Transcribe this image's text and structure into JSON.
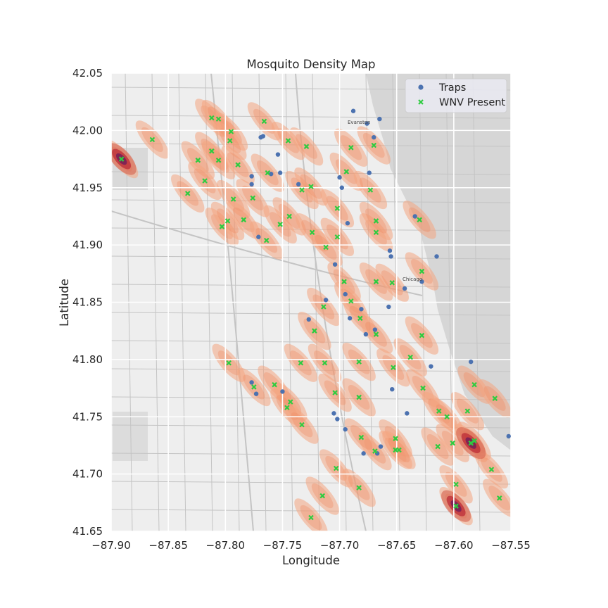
{
  "chart_data": {
    "type": "scatter",
    "title": "Mosquito Density Map",
    "xlabel": "Longitude",
    "ylabel": "Latitude",
    "xlim": [
      -87.9,
      -87.55
    ],
    "ylim": [
      41.65,
      42.05
    ],
    "x_ticks": [
      -87.9,
      -87.85,
      -87.8,
      -87.75,
      -87.7,
      -87.65,
      -87.6,
      -87.55
    ],
    "x_tick_labels": [
      "−87.90",
      "−87.85",
      "−87.80",
      "−87.75",
      "−87.70",
      "−87.65",
      "−87.60",
      "−87.55"
    ],
    "y_ticks": [
      41.65,
      41.7,
      41.75,
      41.8,
      41.85,
      41.9,
      41.95,
      42.0,
      42.05
    ],
    "y_tick_labels": [
      "41.65",
      "41.70",
      "41.75",
      "41.80",
      "41.85",
      "41.90",
      "41.95",
      "42.00",
      "42.05"
    ],
    "grid": true,
    "legend": {
      "position": "top-right",
      "entries": [
        {
          "label": "Traps",
          "marker": "circle",
          "color": "#4c72b0"
        },
        {
          "label": "WNV Present",
          "marker": "x",
          "color": "#2ca02c"
        }
      ]
    },
    "colors": {
      "traps": "#4c72b0",
      "wnv": "#2ecc40",
      "density_low": "#f4a582",
      "density_high": "#6a1b5a",
      "background": "#eaeaf2"
    },
    "map_labels": [
      "Evanston",
      "Chicago"
    ],
    "series": [
      {
        "name": "Traps",
        "points": [
          [
            -87.688,
            42.017
          ],
          [
            -87.676,
            42.006
          ],
          [
            -87.665,
            42.01
          ],
          [
            -87.67,
            41.994
          ],
          [
            -87.769,
            41.994
          ],
          [
            -87.767,
            41.995
          ],
          [
            -87.754,
            41.979
          ],
          [
            -87.76,
            41.962
          ],
          [
            -87.752,
            41.963
          ],
          [
            -87.777,
            41.96
          ],
          [
            -87.777,
            41.953
          ],
          [
            -87.736,
            41.953
          ],
          [
            -87.7,
            41.959
          ],
          [
            -87.698,
            41.95
          ],
          [
            -87.674,
            41.963
          ],
          [
            -87.634,
            41.925
          ],
          [
            -87.693,
            41.919
          ],
          [
            -87.771,
            41.907
          ],
          [
            -87.656,
            41.895
          ],
          [
            -87.655,
            41.89
          ],
          [
            -87.615,
            41.89
          ],
          [
            -87.704,
            41.883
          ],
          [
            -87.628,
            41.868
          ],
          [
            -87.643,
            41.862
          ],
          [
            -87.695,
            41.857
          ],
          [
            -87.712,
            41.852
          ],
          [
            -87.691,
            41.836
          ],
          [
            -87.681,
            41.844
          ],
          [
            -87.727,
            41.835
          ],
          [
            -87.657,
            41.846
          ],
          [
            -87.669,
            41.826
          ],
          [
            -87.677,
            41.822
          ],
          [
            -87.62,
            41.794
          ],
          [
            -87.585,
            41.798
          ],
          [
            -87.777,
            41.78
          ],
          [
            -87.75,
            41.772
          ],
          [
            -87.654,
            41.774
          ],
          [
            -87.705,
            41.753
          ],
          [
            -87.702,
            41.748
          ],
          [
            -87.695,
            41.739
          ],
          [
            -87.664,
            41.724
          ],
          [
            -87.679,
            41.718
          ],
          [
            -87.667,
            41.718
          ],
          [
            -87.552,
            41.733
          ],
          [
            -87.641,
            41.753
          ],
          [
            -87.773,
            41.77
          ]
        ]
      },
      {
        "name": "WNV Present",
        "points": [
          [
            -87.891,
            41.975
          ],
          [
            -87.864,
            41.992
          ],
          [
            -87.824,
            41.974
          ],
          [
            -87.812,
            42.011
          ],
          [
            -87.806,
            42.01
          ],
          [
            -87.795,
            41.999
          ],
          [
            -87.796,
            41.991
          ],
          [
            -87.766,
            42.008
          ],
          [
            -87.745,
            41.991
          ],
          [
            -87.729,
            41.986
          ],
          [
            -87.69,
            41.985
          ],
          [
            -87.67,
            41.987
          ],
          [
            -87.694,
            41.964
          ],
          [
            -87.673,
            41.948
          ],
          [
            -87.812,
            41.982
          ],
          [
            -87.806,
            41.974
          ],
          [
            -87.789,
            41.97
          ],
          [
            -87.763,
            41.963
          ],
          [
            -87.776,
            41.941
          ],
          [
            -87.733,
            41.948
          ],
          [
            -87.725,
            41.951
          ],
          [
            -87.833,
            41.945
          ],
          [
            -87.818,
            41.956
          ],
          [
            -87.793,
            41.94
          ],
          [
            -87.803,
            41.916
          ],
          [
            -87.798,
            41.921
          ],
          [
            -87.784,
            41.922
          ],
          [
            -87.752,
            41.918
          ],
          [
            -87.744,
            41.925
          ],
          [
            -87.724,
            41.911
          ],
          [
            -87.712,
            41.898
          ],
          [
            -87.702,
            41.907
          ],
          [
            -87.702,
            41.932
          ],
          [
            -87.668,
            41.911
          ],
          [
            -87.668,
            41.921
          ],
          [
            -87.764,
            41.904
          ],
          [
            -87.63,
            41.922
          ],
          [
            -87.628,
            41.877
          ],
          [
            -87.668,
            41.868
          ],
          [
            -87.654,
            41.867
          ],
          [
            -87.696,
            41.868
          ],
          [
            -87.69,
            41.851
          ],
          [
            -87.714,
            41.846
          ],
          [
            -87.682,
            41.836
          ],
          [
            -87.668,
            41.822
          ],
          [
            -87.722,
            41.825
          ],
          [
            -87.628,
            41.821
          ],
          [
            -87.797,
            41.797
          ],
          [
            -87.734,
            41.797
          ],
          [
            -87.713,
            41.797
          ],
          [
            -87.683,
            41.798
          ],
          [
            -87.653,
            41.793
          ],
          [
            -87.638,
            41.802
          ],
          [
            -87.775,
            41.776
          ],
          [
            -87.757,
            41.778
          ],
          [
            -87.743,
            41.763
          ],
          [
            -87.746,
            41.758
          ],
          [
            -87.704,
            41.771
          ],
          [
            -87.683,
            41.767
          ],
          [
            -87.627,
            41.775
          ],
          [
            -87.613,
            41.755
          ],
          [
            -87.606,
            41.75
          ],
          [
            -87.588,
            41.755
          ],
          [
            -87.582,
            41.778
          ],
          [
            -87.564,
            41.766
          ],
          [
            -87.585,
            41.727
          ],
          [
            -87.582,
            41.729
          ],
          [
            -87.601,
            41.727
          ],
          [
            -87.614,
            41.724
          ],
          [
            -87.651,
            41.731
          ],
          [
            -87.651,
            41.721
          ],
          [
            -87.648,
            41.721
          ],
          [
            -87.669,
            41.72
          ],
          [
            -87.681,
            41.732
          ],
          [
            -87.733,
            41.743
          ],
          [
            -87.703,
            41.705
          ],
          [
            -87.715,
            41.681
          ],
          [
            -87.683,
            41.688
          ],
          [
            -87.725,
            41.662
          ],
          [
            -87.598,
            41.691
          ],
          [
            -87.598,
            41.672
          ],
          [
            -87.567,
            41.704
          ],
          [
            -87.56,
            41.679
          ]
        ]
      }
    ]
  }
}
